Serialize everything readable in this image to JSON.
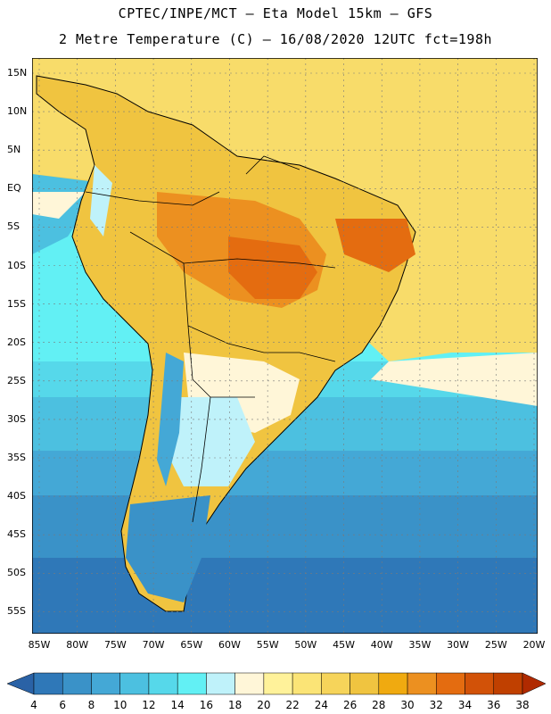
{
  "header": {
    "title_line1": "CPTEC/INPE/MCT –  Eta Model 15km – GFS",
    "title_line2": "2 Metre Temperature (C) – 16/08/2020 12UTC fct=198h"
  },
  "map": {
    "region": "South America",
    "variable": "2 Metre Temperature",
    "units": "C",
    "lon_range": [
      -85,
      -20
    ],
    "lat_range": [
      -58,
      17
    ],
    "lat_labels": [
      "15N",
      "10N",
      "5N",
      "EQ",
      "5S",
      "10S",
      "15S",
      "20S",
      "25S",
      "30S",
      "35S",
      "40S",
      "45S",
      "50S",
      "55S"
    ],
    "lon_labels": [
      "85W",
      "80W",
      "75W",
      "70W",
      "65W",
      "60W",
      "55W",
      "50W",
      "45W",
      "40W",
      "35W",
      "30W",
      "25W",
      "20W"
    ]
  },
  "colorbar": {
    "labels": [
      "4",
      "6",
      "8",
      "10",
      "12",
      "14",
      "16",
      "18",
      "20",
      "22",
      "24",
      "26",
      "28",
      "30",
      "32",
      "34",
      "36",
      "38"
    ],
    "colors": [
      "#2a62a6",
      "#2f78b8",
      "#3a92c8",
      "#44a8d6",
      "#4cc0e0",
      "#56d8ea",
      "#62f0f4",
      "#bff2fa",
      "#fff6d8",
      "#fff29a",
      "#fbe476",
      "#f6d45a",
      "#f0c440",
      "#f0aa10",
      "#ec9020",
      "#e46c10",
      "#d25208",
      "#c04000",
      "#b02a00"
    ]
  }
}
